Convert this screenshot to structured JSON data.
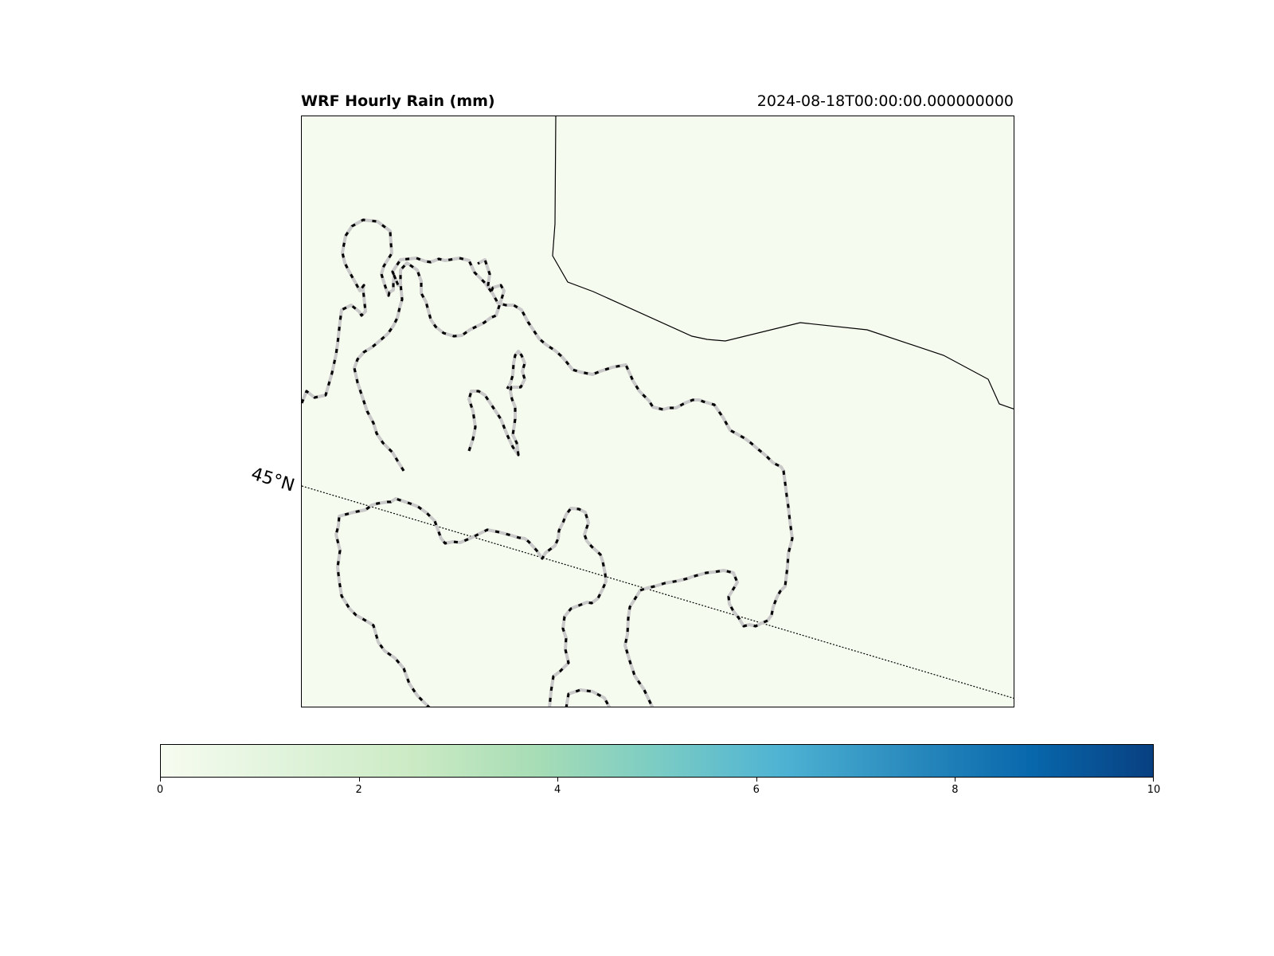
{
  "title_left": "WRF Hourly Rain (mm)",
  "title_right": "2024-08-18T00:00:00.000000000",
  "map": {
    "background_color": "#f6fbef",
    "latitude_label": "45°N"
  },
  "colorbar": {
    "colormap": "GnBu",
    "colors": [
      "#f7fcf0",
      "#e0f3db",
      "#ccebc5",
      "#a8ddb5",
      "#7bccc4",
      "#4eb3d3",
      "#2b8cbe",
      "#0868ac",
      "#084081"
    ],
    "min": 0,
    "max": 10,
    "ticks": [
      "0",
      "2",
      "4",
      "6",
      "8",
      "10"
    ]
  }
}
